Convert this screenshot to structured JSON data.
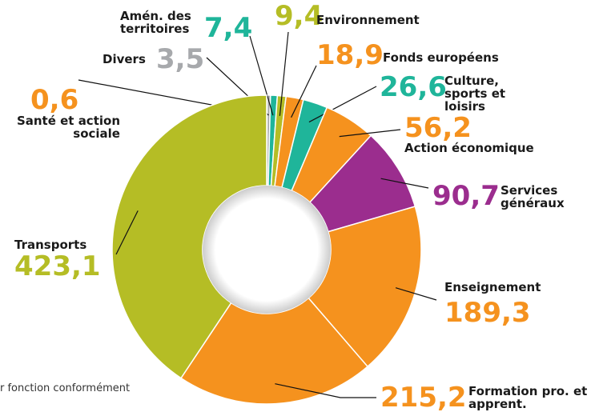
{
  "chart_data": {
    "type": "donut",
    "categories": [
      "Santé et action sociale",
      "Divers",
      "Amén. des territoires",
      "Environnement",
      "Fonds européens",
      "Culture, sports et loisirs",
      "Action économique",
      "Services généraux",
      "Enseignement",
      "Formation pro. et apprent.",
      "Transports"
    ],
    "values": [
      0.6,
      3.5,
      7.4,
      9.4,
      18.9,
      26.6,
      56.2,
      90.7,
      189.3,
      215.2,
      423.1
    ],
    "value_labels": [
      "0,6",
      "3,5",
      "7,4",
      "9,4",
      "18,9",
      "26,6",
      "56,2",
      "90,7",
      "189,3",
      "215,2",
      "423,1"
    ],
    "colors": [
      "#f5921e",
      "#a7a9ac",
      "#1fb59a",
      "#b5bd25",
      "#f5921e",
      "#1fb59a",
      "#f5921e",
      "#9b2d8e",
      "#f5921e",
      "#f5921e",
      "#b5bd25"
    ],
    "footnote": "r fonction conformément"
  }
}
